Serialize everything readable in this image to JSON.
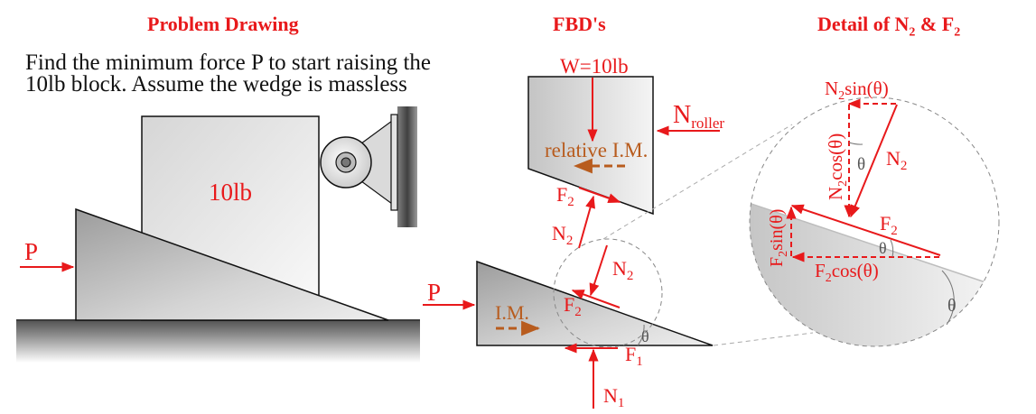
{
  "headers": {
    "problem": "Problem Drawing",
    "fbd": "FBD's",
    "detail": "Detail of N₂ & F₂"
  },
  "problem_text": {
    "line1": "Find the minimum force P to start raising the",
    "line2": "10lb block. Assume the wedge is massless"
  },
  "problem_drawing": {
    "block_label": "10lb",
    "force_label": "P"
  },
  "fbd_block": {
    "weight_label": "W=10lb",
    "normal_roller_main": "N",
    "normal_roller_sub": "roller",
    "motion_label": "relative I.M.",
    "friction_main": "F",
    "friction_sub": "2",
    "normal_main": "N",
    "normal_sub": "2"
  },
  "fbd_wedge": {
    "force_label": "P",
    "motion_label": "I.M.",
    "normal2_main": "N",
    "normal2_sub": "2",
    "friction2_main": "F",
    "friction2_sub": "2",
    "angle_label": "θ",
    "friction1_main": "F",
    "friction1_sub": "1",
    "normal1_main": "N",
    "normal1_sub": "1"
  },
  "detail": {
    "n2sin_main": "N",
    "n2sin_sub": "2",
    "n2sin_tail": "sin(θ)",
    "n2cos_main": "N",
    "n2cos_sub": "2",
    "n2cos_tail": "cos(θ)",
    "n2_main": "N",
    "n2_sub": "2",
    "theta_upper": "θ",
    "f2_main": "F",
    "f2_sub": "2",
    "theta_mid": "θ",
    "f2sin_main": "F",
    "f2sin_sub": "2",
    "f2sin_tail": "sin(θ)",
    "f2cos_main": "F",
    "f2cos_sub": "2",
    "f2cos_tail": "cos(θ)",
    "theta_lower": "θ"
  },
  "colors": {
    "force": "#e8191b",
    "motion": "#b85c1e",
    "outline": "#111111"
  }
}
